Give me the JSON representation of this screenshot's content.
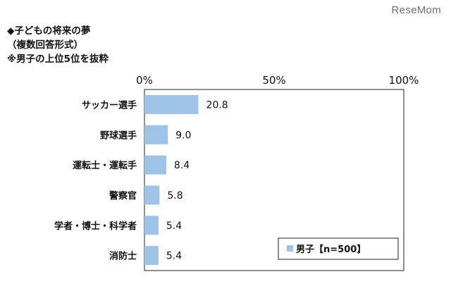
{
  "watermark": "ReseMom",
  "title_lines": [
    "◆子どもの将来の夢",
    "（複数回答形式）",
    "※男子の上位5位を抜粋"
  ],
  "chart_data": {
    "type": "bar",
    "orientation": "horizontal",
    "categories": [
      "サッカー選手",
      "野球選手",
      "運転士・運転手",
      "警察官",
      "学者・博士・科学者",
      "消防士"
    ],
    "series": [
      {
        "name": "男子【n=500】",
        "values": [
          20.8,
          9.0,
          8.4,
          5.8,
          5.4,
          5.4
        ],
        "color": "#9dc3e6"
      }
    ],
    "value_labels": [
      "20.8",
      "9.0",
      "8.4",
      "5.8",
      "5.4",
      "5.4"
    ],
    "xlim": [
      0,
      100
    ],
    "x_ticks": [
      "0%",
      "50%",
      "100%"
    ],
    "x_tick_values": [
      0,
      50,
      100
    ],
    "grid": false,
    "legend_position": "bottom-right"
  }
}
